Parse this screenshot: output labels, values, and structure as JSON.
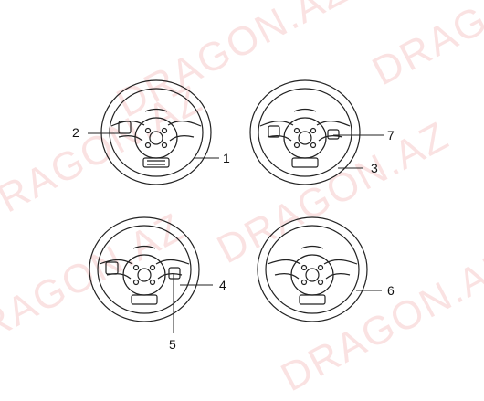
{
  "watermark": {
    "text": "DRAGON.AZ",
    "color": "#f6cccc"
  },
  "figure": {
    "items": [
      {
        "label": "1"
      },
      {
        "label": "2"
      },
      {
        "label": "3"
      },
      {
        "label": "4"
      },
      {
        "label": "5"
      },
      {
        "label": "6"
      },
      {
        "label": "7"
      }
    ],
    "line_color": "#222222"
  }
}
